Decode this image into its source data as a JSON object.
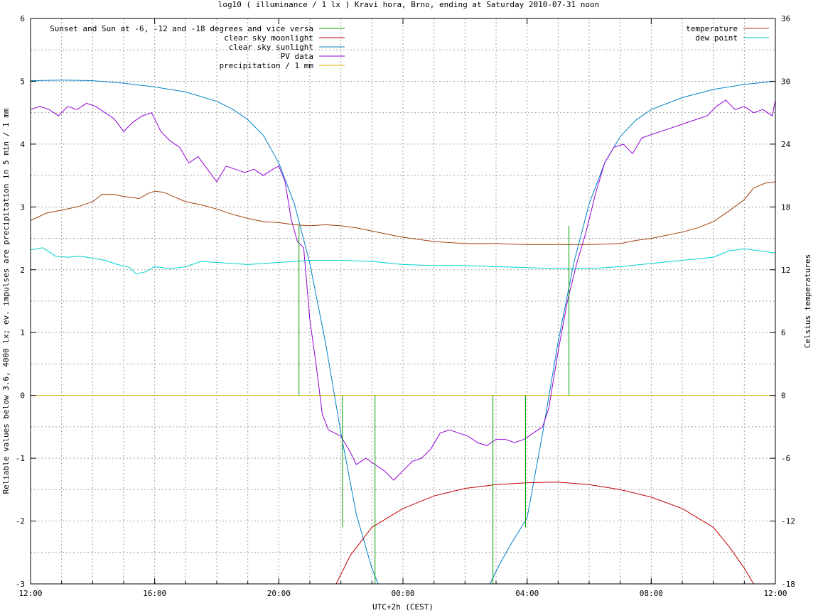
{
  "chart_data": {
    "type": "line",
    "title": "log10 ( illuminance / 1 lx ) Kravi hora, Brno, ending at Saturday 2010-07-31 noon",
    "xlabel": "UTC+2h (CEST)",
    "ylabel": "Reliable values below 3.6, 4000 lx; ev. impulses are precipitation in 5 min / 1 mm",
    "y2label": "Celsius temperatures",
    "x_unit": "hours since 12:00",
    "xlim": [
      0,
      24
    ],
    "ylim": [
      -3,
      6
    ],
    "y2lim": [
      -18,
      36
    ],
    "x_ticks": [
      {
        "x": 0,
        "label": "12:00"
      },
      {
        "x": 4,
        "label": "16:00"
      },
      {
        "x": 8,
        "label": "20:00"
      },
      {
        "x": 12,
        "label": "00:00"
      },
      {
        "x": 16,
        "label": "04:00"
      },
      {
        "x": 20,
        "label": "08:00"
      },
      {
        "x": 24,
        "label": "12:00"
      }
    ],
    "x_minor_step": 1,
    "y_ticks": [
      {
        "y": -3,
        "label": "-3"
      },
      {
        "y": -2,
        "label": "-2"
      },
      {
        "y": -1,
        "label": "-1"
      },
      {
        "y": 0,
        "label": "0"
      },
      {
        "y": 1,
        "label": "1"
      },
      {
        "y": 2,
        "label": "2"
      },
      {
        "y": 3,
        "label": "3"
      },
      {
        "y": 4,
        "label": "4"
      },
      {
        "y": 5,
        "label": "5"
      },
      {
        "y": 6,
        "label": "6"
      }
    ],
    "y_minor_step": 0.5,
    "y2_ticks": [
      {
        "y": -18,
        "label": "-18"
      },
      {
        "y": -12,
        "label": "-12"
      },
      {
        "y": -6,
        "label": "-6"
      },
      {
        "y": 0,
        "label": "0"
      },
      {
        "y": 6,
        "label": "6"
      },
      {
        "y": 12,
        "label": "12"
      },
      {
        "y": 18,
        "label": "18"
      },
      {
        "y": 24,
        "label": "24"
      },
      {
        "y": 30,
        "label": "30"
      },
      {
        "y": 36,
        "label": "36"
      }
    ],
    "grid": true,
    "legend_left": [
      {
        "name": "Sunset and Sun at -6, -12 and -18 degrees and vice versa",
        "color": "#00a000"
      },
      {
        "name": "clear sky moonlight",
        "color": "#c00000"
      },
      {
        "name": "clear sky sunlight",
        "color": "#0080c8"
      },
      {
        "name": "PV data",
        "color": "#9400d3"
      },
      {
        "name": "precipitation / 1 mm",
        "color": "#e0b000"
      }
    ],
    "legend_right": [
      {
        "name": "temperature",
        "color": "#a0400a"
      },
      {
        "name": "dew point",
        "color": "#00d0d0"
      }
    ],
    "sun_events": {
      "color": "#00a000",
      "base": 0,
      "events": [
        {
          "x": 8.65,
          "top": 2.7
        },
        {
          "x": 10.05,
          "top": -2.1
        },
        {
          "x": 11.1,
          "top": -3
        },
        {
          "x": 14.9,
          "top": -3
        },
        {
          "x": 15.95,
          "top": -2.1
        },
        {
          "x": 17.35,
          "top": 2.7
        }
      ]
    },
    "series": [
      {
        "name": "clear sky sunlight",
        "axis": "y1",
        "color": "#0080c8",
        "points": [
          [
            0,
            5.01
          ],
          [
            1,
            5.02
          ],
          [
            2,
            5.01
          ],
          [
            3,
            4.97
          ],
          [
            4,
            4.91
          ],
          [
            5,
            4.83
          ],
          [
            6,
            4.68
          ],
          [
            6.5,
            4.56
          ],
          [
            7,
            4.39
          ],
          [
            7.5,
            4.14
          ],
          [
            8,
            3.7
          ],
          [
            8.5,
            3.05
          ],
          [
            9,
            2.1
          ],
          [
            9.5,
            0.85
          ],
          [
            10,
            -0.6
          ],
          [
            10.5,
            -1.9
          ],
          [
            11,
            -2.75
          ],
          [
            11.2,
            -3.05
          ]
        ]
      },
      {
        "name": "clear sky sunlight",
        "axis": "y1",
        "color": "#0080c8",
        "points": [
          [
            14.8,
            -3.05
          ],
          [
            15.1,
            -2.7
          ],
          [
            15.5,
            -2.35
          ],
          [
            16,
            -1.95
          ],
          [
            16.5,
            -0.6
          ],
          [
            17,
            0.85
          ],
          [
            17.5,
            2.1
          ],
          [
            18,
            3.05
          ],
          [
            18.5,
            3.7
          ],
          [
            19,
            4.12
          ],
          [
            19.5,
            4.38
          ],
          [
            20,
            4.55
          ],
          [
            21,
            4.74
          ],
          [
            22,
            4.87
          ],
          [
            23,
            4.95
          ],
          [
            24,
            5.0
          ]
        ]
      },
      {
        "name": "clear sky moonlight",
        "axis": "y1",
        "color": "#c00000",
        "points": [
          [
            9.85,
            -3.05
          ],
          [
            10.3,
            -2.55
          ],
          [
            11,
            -2.1
          ],
          [
            12,
            -1.8
          ],
          [
            13,
            -1.6
          ],
          [
            14,
            -1.48
          ],
          [
            15,
            -1.42
          ],
          [
            16,
            -1.39
          ],
          [
            17,
            -1.38
          ],
          [
            18,
            -1.42
          ],
          [
            19,
            -1.5
          ],
          [
            20,
            -1.62
          ],
          [
            21,
            -1.8
          ],
          [
            22,
            -2.1
          ],
          [
            22.5,
            -2.4
          ],
          [
            23,
            -2.75
          ],
          [
            23.3,
            -3.05
          ]
        ]
      },
      {
        "name": "PV data",
        "axis": "y1",
        "color": "#9400d3",
        "points": [
          [
            0,
            4.55
          ],
          [
            0.3,
            4.6
          ],
          [
            0.6,
            4.55
          ],
          [
            0.9,
            4.45
          ],
          [
            1.2,
            4.6
          ],
          [
            1.5,
            4.55
          ],
          [
            1.8,
            4.65
          ],
          [
            2.1,
            4.6
          ],
          [
            2.4,
            4.5
          ],
          [
            2.7,
            4.4
          ],
          [
            3.0,
            4.2
          ],
          [
            3.3,
            4.35
          ],
          [
            3.6,
            4.45
          ],
          [
            3.9,
            4.5
          ],
          [
            4.2,
            4.2
          ],
          [
            4.5,
            4.05
          ],
          [
            4.8,
            3.95
          ],
          [
            5.1,
            3.7
          ],
          [
            5.4,
            3.8
          ],
          [
            5.7,
            3.6
          ],
          [
            6.0,
            3.4
          ],
          [
            6.3,
            3.65
          ],
          [
            6.6,
            3.6
          ],
          [
            6.9,
            3.55
          ],
          [
            7.2,
            3.6
          ],
          [
            7.5,
            3.5
          ],
          [
            7.8,
            3.6
          ],
          [
            8.0,
            3.65
          ],
          [
            8.2,
            3.4
          ],
          [
            8.4,
            2.8
          ],
          [
            8.6,
            2.45
          ],
          [
            8.8,
            2.35
          ],
          [
            9.0,
            1.2
          ],
          [
            9.2,
            0.5
          ],
          [
            9.4,
            -0.3
          ],
          [
            9.6,
            -0.55
          ],
          [
            10.0,
            -0.65
          ],
          [
            10.3,
            -0.9
          ],
          [
            10.5,
            -1.1
          ],
          [
            10.8,
            -1.0
          ],
          [
            11.1,
            -1.1
          ],
          [
            11.4,
            -1.2
          ],
          [
            11.7,
            -1.35
          ],
          [
            12.0,
            -1.2
          ],
          [
            12.3,
            -1.05
          ],
          [
            12.6,
            -1.0
          ],
          [
            12.9,
            -0.85
          ],
          [
            13.2,
            -0.6
          ],
          [
            13.5,
            -0.55
          ],
          [
            13.8,
            -0.6
          ],
          [
            14.1,
            -0.65
          ],
          [
            14.4,
            -0.75
          ],
          [
            14.7,
            -0.8
          ],
          [
            15.0,
            -0.7
          ],
          [
            15.3,
            -0.7
          ],
          [
            15.6,
            -0.75
          ],
          [
            15.9,
            -0.7
          ],
          [
            16.2,
            -0.6
          ],
          [
            16.5,
            -0.5
          ],
          [
            16.7,
            -0.2
          ],
          [
            17.0,
            0.7
          ],
          [
            17.3,
            1.5
          ],
          [
            17.6,
            2.1
          ],
          [
            17.9,
            2.6
          ],
          [
            18.2,
            3.2
          ],
          [
            18.5,
            3.7
          ],
          [
            18.8,
            3.95
          ],
          [
            19.1,
            4.0
          ],
          [
            19.4,
            3.85
          ],
          [
            19.7,
            4.1
          ],
          [
            20.0,
            4.15
          ],
          [
            20.3,
            4.2
          ],
          [
            20.6,
            4.25
          ],
          [
            20.9,
            4.3
          ],
          [
            21.2,
            4.35
          ],
          [
            21.5,
            4.4
          ],
          [
            21.8,
            4.45
          ],
          [
            22.1,
            4.6
          ],
          [
            22.4,
            4.7
          ],
          [
            22.7,
            4.55
          ],
          [
            23.0,
            4.6
          ],
          [
            23.3,
            4.5
          ],
          [
            23.6,
            4.55
          ],
          [
            23.9,
            4.45
          ],
          [
            24.0,
            4.7
          ]
        ]
      },
      {
        "name": "precipitation / 1 mm",
        "axis": "y1",
        "color": "#e0b000",
        "points": [
          [
            0,
            0
          ],
          [
            24,
            0
          ]
        ]
      },
      {
        "name": "temperature",
        "axis": "y2",
        "color": "#a0400a",
        "points": [
          [
            0,
            16.7
          ],
          [
            0.5,
            17.4
          ],
          [
            1,
            17.7
          ],
          [
            1.5,
            18.0
          ],
          [
            2,
            18.5
          ],
          [
            2.3,
            19.2
          ],
          [
            2.7,
            19.2
          ],
          [
            3,
            19.0
          ],
          [
            3.5,
            18.8
          ],
          [
            3.8,
            19.3
          ],
          [
            4,
            19.5
          ],
          [
            4.3,
            19.4
          ],
          [
            4.6,
            19.0
          ],
          [
            5,
            18.5
          ],
          [
            5.5,
            18.2
          ],
          [
            6,
            17.8
          ],
          [
            6.5,
            17.3
          ],
          [
            7,
            16.9
          ],
          [
            7.5,
            16.6
          ],
          [
            8,
            16.5
          ],
          [
            8.5,
            16.3
          ],
          [
            9,
            16.2
          ],
          [
            9.5,
            16.3
          ],
          [
            10,
            16.2
          ],
          [
            10.5,
            16.0
          ],
          [
            11,
            15.7
          ],
          [
            11.5,
            15.4
          ],
          [
            12,
            15.1
          ],
          [
            12.5,
            14.9
          ],
          [
            13,
            14.7
          ],
          [
            13.5,
            14.6
          ],
          [
            14,
            14.5
          ],
          [
            15,
            14.5
          ],
          [
            16,
            14.4
          ],
          [
            17,
            14.4
          ],
          [
            18,
            14.4
          ],
          [
            19,
            14.5
          ],
          [
            19.5,
            14.8
          ],
          [
            20,
            15.0
          ],
          [
            20.5,
            15.3
          ],
          [
            21,
            15.6
          ],
          [
            21.5,
            16.0
          ],
          [
            22,
            16.6
          ],
          [
            22.5,
            17.6
          ],
          [
            23,
            18.7
          ],
          [
            23.3,
            19.8
          ],
          [
            23.7,
            20.3
          ],
          [
            24,
            20.4
          ]
        ]
      },
      {
        "name": "dew point",
        "axis": "y2",
        "color": "#00d0d0",
        "points": [
          [
            0,
            13.9
          ],
          [
            0.4,
            14.1
          ],
          [
            0.8,
            13.3
          ],
          [
            1.2,
            13.2
          ],
          [
            1.6,
            13.3
          ],
          [
            2,
            13.1
          ],
          [
            2.4,
            12.9
          ],
          [
            2.8,
            12.5
          ],
          [
            3.2,
            12.2
          ],
          [
            3.4,
            11.6
          ],
          [
            3.7,
            11.8
          ],
          [
            4,
            12.3
          ],
          [
            4.5,
            12.1
          ],
          [
            5,
            12.3
          ],
          [
            5.5,
            12.8
          ],
          [
            6,
            12.7
          ],
          [
            6.5,
            12.6
          ],
          [
            7,
            12.5
          ],
          [
            8,
            12.7
          ],
          [
            9,
            12.9
          ],
          [
            10,
            12.9
          ],
          [
            11,
            12.8
          ],
          [
            12,
            12.5
          ],
          [
            13,
            12.4
          ],
          [
            14,
            12.4
          ],
          [
            15,
            12.3
          ],
          [
            16,
            12.2
          ],
          [
            17,
            12.1
          ],
          [
            18,
            12.1
          ],
          [
            19,
            12.3
          ],
          [
            20,
            12.6
          ],
          [
            21,
            12.9
          ],
          [
            22,
            13.2
          ],
          [
            22.5,
            13.8
          ],
          [
            23,
            14.0
          ],
          [
            23.5,
            13.8
          ],
          [
            24,
            13.6
          ]
        ]
      }
    ]
  }
}
